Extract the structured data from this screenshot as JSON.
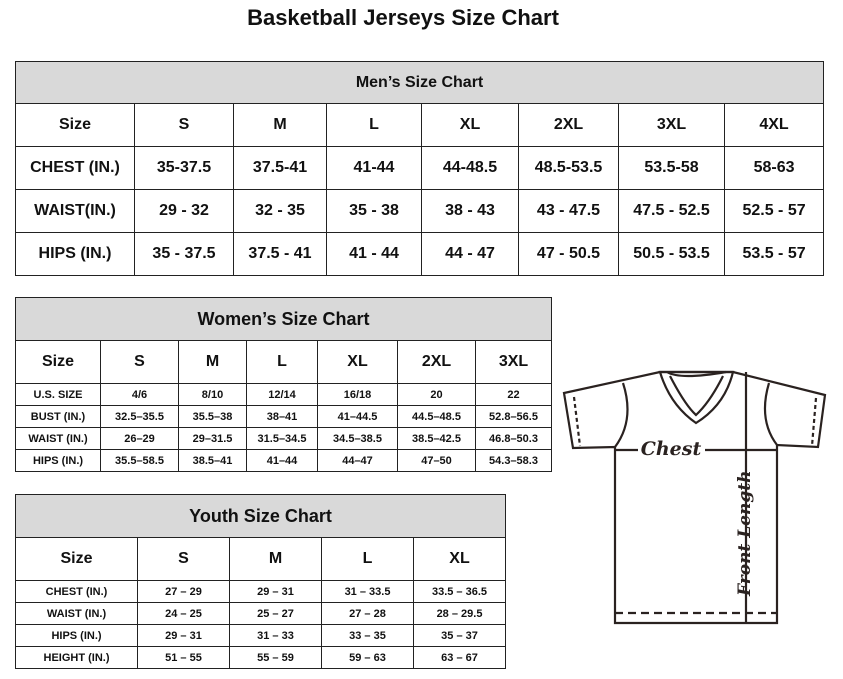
{
  "title": "Basketball Jerseys Size Chart",
  "men": {
    "title": "Men’s Size Chart",
    "header": [
      "Size",
      "S",
      "M",
      "L",
      "XL",
      "2XL",
      "3XL",
      "4XL"
    ],
    "rows": [
      [
        "CHEST (IN.)",
        "35-37.5",
        "37.5-41",
        "41-44",
        "44-48.5",
        "48.5-53.5",
        "53.5-58",
        "58-63"
      ],
      [
        "WAIST(IN.)",
        "29 - 32",
        "32 - 35",
        "35 - 38",
        "38 - 43",
        "43 - 47.5",
        "47.5 - 52.5",
        "52.5 - 57"
      ],
      [
        "HIPS (IN.)",
        "35 - 37.5",
        "37.5 - 41",
        "41 - 44",
        "44 - 47",
        "47 - 50.5",
        "50.5 - 53.5",
        "53.5 - 57"
      ]
    ]
  },
  "women": {
    "title": "Women’s Size Chart",
    "header": [
      "Size",
      "S",
      "M",
      "L",
      "XL",
      "2XL",
      "3XL"
    ],
    "rows": [
      [
        "U.S.  SIZE",
        "4/6",
        "8/10",
        "12/14",
        "16/18",
        "20",
        "22"
      ],
      [
        "BUST  (IN.)",
        "32.5–35.5",
        "35.5–38",
        "38–41",
        "41–44.5",
        "44.5–48.5",
        "52.8–56.5"
      ],
      [
        "WAIST  (IN.)",
        "26–29",
        "29–31.5",
        "31.5–34.5",
        "34.5–38.5",
        "38.5–42.5",
        "46.8–50.3"
      ],
      [
        "HIPS  (IN.)",
        "35.5–58.5",
        "38.5–41",
        "41–44",
        "44–47",
        "47–50",
        "54.3–58.3"
      ]
    ]
  },
  "youth": {
    "title": "Youth Size Chart",
    "header": [
      "Size",
      "S",
      "M",
      "L",
      "XL"
    ],
    "rows": [
      [
        "CHEST  (IN.)",
        "27  –  29",
        "29  –  31",
        "31  –  33.5",
        "33.5  –  36.5"
      ],
      [
        "WAIST  (IN.)",
        "24  –  25",
        "25  –  27",
        "27  –  28",
        "28  –  29.5"
      ],
      [
        "HIPS  (IN.)",
        "29  –  31",
        "31  –  33",
        "33  –  35",
        "35  –  37"
      ],
      [
        "HEIGHT  (IN.)",
        "51  –  55",
        "55  –  59",
        "59  –  63",
        "63  –  67"
      ]
    ]
  },
  "diagram": {
    "chest_label": "Chest",
    "length_label": "Front Length"
  }
}
